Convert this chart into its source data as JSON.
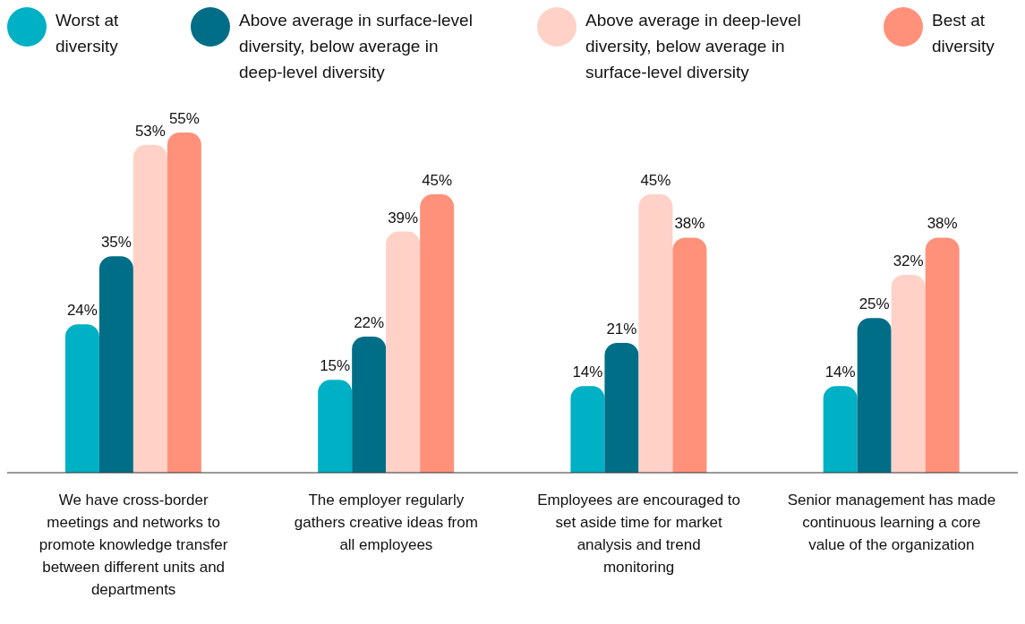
{
  "chart_data": {
    "type": "bar",
    "categories": [
      "We have cross-border meetings and networks to promote knowledge transfer between different units and departments",
      "The employer regularly gathers creative ideas from all employees",
      "Employees are encouraged to set aside time for market analysis and trend monitoring",
      "Senior management has made continuous learning a core value of the organization"
    ],
    "series": [
      {
        "name": "Worst at diversity",
        "color": "#00b0c4",
        "values": [
          24,
          15,
          14,
          14
        ],
        "value_labels": [
          "24%",
          "15%",
          "14%",
          "14%"
        ]
      },
      {
        "name": "Above average in surface-level diversity, below average in deep-level diversity",
        "color": "#006e87",
        "values": [
          35,
          22,
          21,
          25
        ],
        "value_labels": [
          "35%",
          "22%",
          "21%",
          "25%"
        ]
      },
      {
        "name": "Above average in deep-level diversity, below average in surface-level diversity",
        "color": "#ffd1c7",
        "values": [
          53,
          39,
          45,
          32
        ],
        "value_labels": [
          "53%",
          "39%",
          "45%",
          "32%"
        ]
      },
      {
        "name": "Best at diversity",
        "color": "#ff917a",
        "values": [
          55,
          45,
          38,
          38
        ],
        "value_labels": [
          "55%",
          "45%",
          "38%",
          "38%"
        ]
      }
    ],
    "legend": "top",
    "grid": false
  }
}
